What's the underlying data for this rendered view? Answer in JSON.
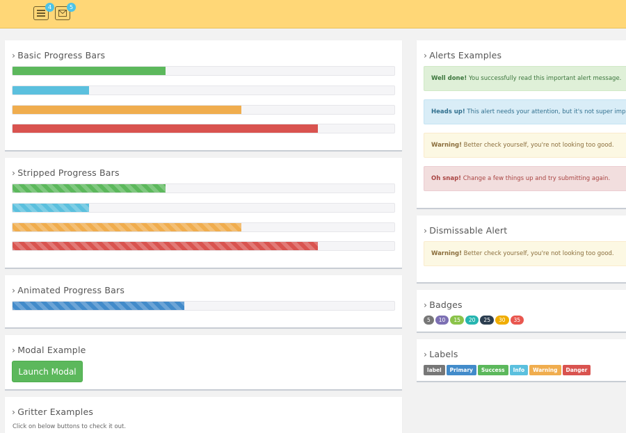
{
  "topbar": {
    "icons": [
      {
        "name": "tasks-icon",
        "badge": "4",
        "badge_color": "#4ec3e6"
      },
      {
        "name": "envelope-icon",
        "badge": "5",
        "badge_color": "#4ec3e6"
      }
    ]
  },
  "colors": {
    "topbar": "#ffd777",
    "success": "#5cb85c",
    "info": "#5bc0de",
    "warning": "#f0ad4e",
    "danger": "#d9534f",
    "primary": "#428bca"
  },
  "basic": {
    "title": "Basic Progress Bars",
    "bars": [
      {
        "color": "success",
        "percent": 40
      },
      {
        "color": "info",
        "percent": 20
      },
      {
        "color": "warning",
        "percent": 60
      },
      {
        "color": "danger",
        "percent": 80
      }
    ]
  },
  "striped": {
    "title": "Stripped Progress Bars",
    "bars": [
      {
        "color": "success",
        "percent": 40
      },
      {
        "color": "info",
        "percent": 20
      },
      {
        "color": "warning",
        "percent": 60
      },
      {
        "color": "danger",
        "percent": 80
      }
    ]
  },
  "animated": {
    "title": "Animated Progress Bars",
    "bars": [
      {
        "color": "primary",
        "percent": 45
      }
    ]
  },
  "modal": {
    "title": "Modal Example",
    "button_label": "Launch Modal"
  },
  "gritter": {
    "title": "Gritter Examples",
    "text": "Click on below buttons to check it out."
  },
  "alerts": {
    "title": "Alerts Examples",
    "items": [
      {
        "type": "success",
        "strong": "Well done!",
        "text": " You successfully read this important alert message."
      },
      {
        "type": "info",
        "strong": "Heads up!",
        "text": " This alert needs your attention, but it's not super importa"
      },
      {
        "type": "warning",
        "strong": "Warning!",
        "text": " Better check yourself, you're not looking too good."
      },
      {
        "type": "danger",
        "strong": "Oh snap!",
        "text": " Change a few things up and try submitting again."
      }
    ]
  },
  "dismissable": {
    "title": "Dismissable Alert",
    "strong": "Warning!",
    "text": " Better check yourself, you're not looking too good."
  },
  "badges": {
    "title": "Badges",
    "items": [
      {
        "label": "5",
        "color": "#777777"
      },
      {
        "label": "10",
        "color": "#7c6fb3"
      },
      {
        "label": "15",
        "color": "#8bc34a"
      },
      {
        "label": "20",
        "color": "#26b5b0"
      },
      {
        "label": "25",
        "color": "#2c3e50"
      },
      {
        "label": "30",
        "color": "#f0ad00"
      },
      {
        "label": "35",
        "color": "#e9574f"
      }
    ]
  },
  "labels": {
    "title": "Labels",
    "items": [
      {
        "label": "label",
        "color": "#777777"
      },
      {
        "label": "Primary",
        "color": "#428bca"
      },
      {
        "label": "Success",
        "color": "#5cb85c"
      },
      {
        "label": "Info",
        "color": "#5bc0de"
      },
      {
        "label": "Warning",
        "color": "#f0ad4e"
      },
      {
        "label": "Danger",
        "color": "#d9534f"
      }
    ]
  }
}
